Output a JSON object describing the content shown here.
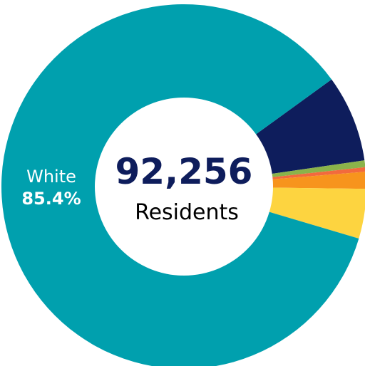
{
  "chart_data": {
    "type": "pie",
    "donut": true,
    "center_value": "92,256",
    "center_label": "Residents",
    "slices": [
      {
        "name": "",
        "value": 7.7,
        "color": "#0e1d5c"
      },
      {
        "name": "",
        "value": 0.6,
        "color": "#8bb34a"
      },
      {
        "name": "",
        "value": 0.4,
        "color": "#f26a3d"
      },
      {
        "name": "",
        "value": 1.5,
        "color": "#f7941d"
      },
      {
        "name": "",
        "value": 4.4,
        "color": "#fdd440"
      },
      {
        "name": "White",
        "value": 85.4,
        "value_label": "85.4%",
        "color": "#00a0ae"
      }
    ]
  }
}
